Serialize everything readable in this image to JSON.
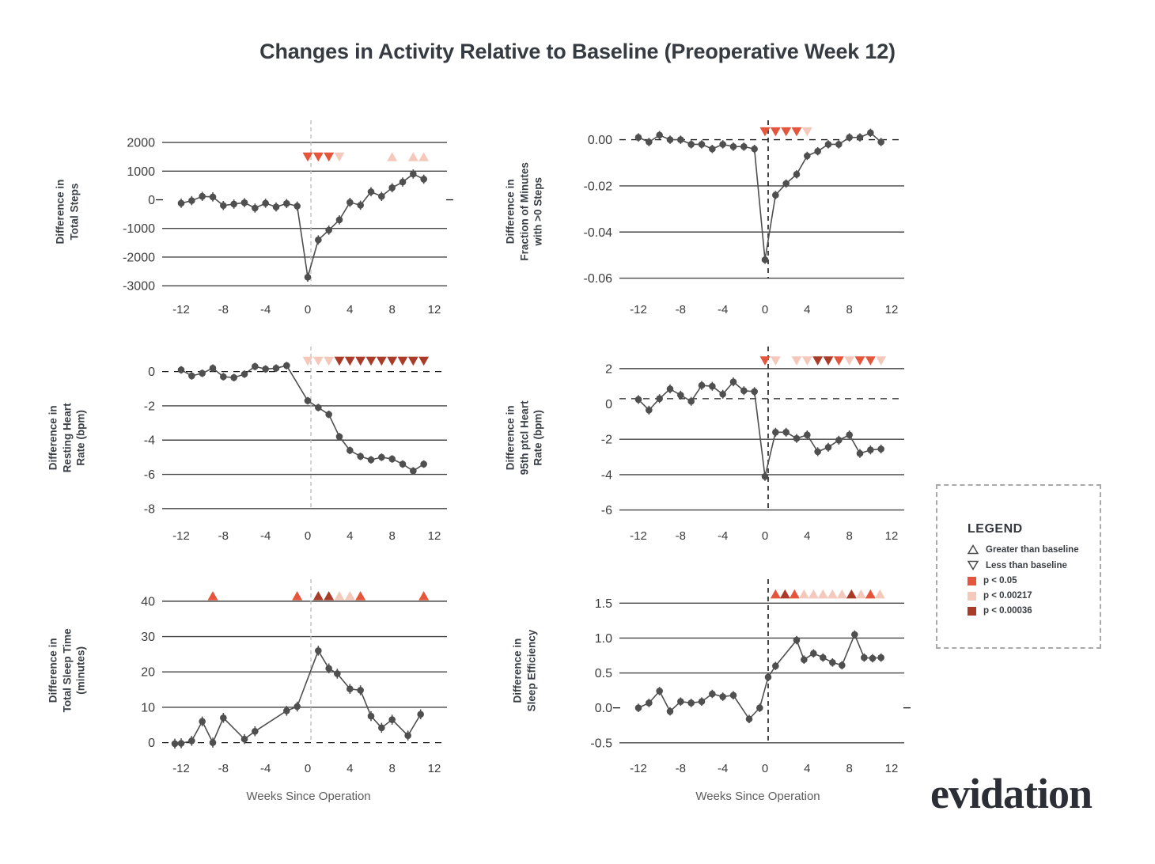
{
  "title": "Changes in Activity Relative to Baseline (Preoperative Week 12)",
  "x_axis_label": "Weeks Since Operation",
  "brand": {
    "logo_text": "evidation"
  },
  "legend": {
    "title": "LEGEND",
    "items": [
      {
        "glyph": "triangle-up-outline",
        "label": "Greater than baseline"
      },
      {
        "glyph": "triangle-down-outline",
        "label": "Less than baseline"
      },
      {
        "glyph": "square",
        "color": "#E4553B",
        "label": "p < 0.05"
      },
      {
        "glyph": "square",
        "color": "#F5C8BC",
        "label": "p < 0.00217"
      },
      {
        "glyph": "square",
        "color": "#A93B28",
        "label": "p < 0.00036"
      }
    ]
  },
  "colors": {
    "p05": "#E4553B",
    "p00217": "#F5C8BC",
    "p00036": "#A93B28",
    "series": "#4f4f4f",
    "grid": "#444444",
    "baseline": "#1a1a1a",
    "vline_left": "#bcbcbc",
    "vline_right": "#1a1a1a"
  },
  "chart_data": [
    {
      "type": "line",
      "name": "total-steps",
      "ylabel_lines": [
        "Difference in",
        "Total Steps"
      ],
      "xlim": [
        -13.8,
        13.2
      ],
      "x_ticks": [
        -12,
        -8,
        -4,
        0,
        4,
        8,
        12
      ],
      "ylim": [
        -3300,
        2500
      ],
      "y_ticks": [
        {
          "v": 2000,
          "label": "2000"
        },
        {
          "v": 1000,
          "label": "1000"
        },
        {
          "v": 0,
          "label": "0",
          "grid": false
        },
        {
          "v": -1000,
          "label": "-1000"
        },
        {
          "v": -2000,
          "label": "-2000"
        },
        {
          "v": -3000,
          "label": "-3000"
        }
      ],
      "baseline": {
        "value": 0,
        "style": "edge"
      },
      "vline": {
        "x": 0.3,
        "side": "left"
      },
      "err": 160,
      "x": [
        -12,
        -11,
        -10,
        -9,
        -8,
        -7,
        -6,
        -5,
        -4,
        -3,
        -2,
        -1,
        0,
        1,
        2,
        3,
        4,
        5,
        6,
        7,
        8,
        9,
        10,
        11
      ],
      "y": [
        -120,
        -30,
        120,
        100,
        -200,
        -150,
        -100,
        -290,
        -120,
        -250,
        -130,
        -220,
        -2700,
        -1400,
        -1060,
        -700,
        -90,
        -190,
        280,
        120,
        420,
        620,
        900,
        720
      ],
      "sig_y": 1500,
      "sig": [
        {
          "x": 0,
          "dir": "down",
          "p": "p05"
        },
        {
          "x": 1,
          "dir": "down",
          "p": "p05"
        },
        {
          "x": 2,
          "dir": "down",
          "p": "p05"
        },
        {
          "x": 3,
          "dir": "down",
          "p": "p00217"
        },
        {
          "x": 8,
          "dir": "up",
          "p": "p00217"
        },
        {
          "x": 10,
          "dir": "up",
          "p": "p00217"
        },
        {
          "x": 11,
          "dir": "up",
          "p": "p00217"
        }
      ]
    },
    {
      "type": "line",
      "name": "fraction-minutes-steps",
      "ylabel_lines": [
        "Difference in",
        "Fraction of Minutes",
        "with >0 Steps"
      ],
      "xlim": [
        -13.8,
        13.2
      ],
      "x_ticks": [
        -12,
        -8,
        -4,
        0,
        4,
        8,
        12
      ],
      "ylim": [
        -0.067,
        0.005
      ],
      "y_ticks": [
        {
          "v": 0,
          "label": "0.00",
          "grid": false
        },
        {
          "v": -0.02,
          "label": "-0.02"
        },
        {
          "v": -0.04,
          "label": "-0.04"
        },
        {
          "v": -0.06,
          "label": "-0.06"
        }
      ],
      "baseline": {
        "value": 0,
        "style": "line"
      },
      "vline": {
        "x": 0.3,
        "side": "right"
      },
      "err": 0.0018,
      "x": [
        -12,
        -11,
        -10,
        -9,
        -8,
        -7,
        -6,
        -5,
        -4,
        -3,
        -2,
        -1,
        0,
        1,
        2,
        3,
        4,
        5,
        6,
        7,
        8,
        9,
        10,
        11
      ],
      "y": [
        0.001,
        -0.001,
        0.002,
        0.0,
        0.0,
        -0.002,
        -0.002,
        -0.004,
        -0.002,
        -0.003,
        -0.003,
        -0.004,
        -0.052,
        -0.024,
        -0.019,
        -0.015,
        -0.007,
        -0.005,
        -0.002,
        -0.002,
        0.001,
        0.001,
        0.003,
        -0.001
      ],
      "sig_y": 0.0035,
      "sig": [
        {
          "x": 0,
          "dir": "down",
          "p": "p05"
        },
        {
          "x": 1,
          "dir": "down",
          "p": "p05"
        },
        {
          "x": 2,
          "dir": "down",
          "p": "p05"
        },
        {
          "x": 3,
          "dir": "down",
          "p": "p05"
        },
        {
          "x": 4,
          "dir": "down",
          "p": "p00217"
        }
      ]
    },
    {
      "type": "line",
      "name": "resting-heart-rate",
      "ylabel_lines": [
        "Difference in",
        "Resting Heart",
        "Rate (bpm)"
      ],
      "xlim": [
        -13.8,
        13.2
      ],
      "x_ticks": [
        -12,
        -8,
        -4,
        0,
        4,
        8,
        12
      ],
      "ylim": [
        -8.7,
        1.0
      ],
      "y_ticks": [
        {
          "v": 0,
          "label": "0",
          "grid": false
        },
        {
          "v": -2,
          "label": "-2"
        },
        {
          "v": -4,
          "label": "-4"
        },
        {
          "v": -6,
          "label": "-6"
        },
        {
          "v": -8,
          "label": "-8"
        }
      ],
      "baseline": {
        "value": 0,
        "style": "line"
      },
      "vline": {
        "x": 0.3,
        "side": "left"
      },
      "err": 0.22,
      "x": [
        -12,
        -11,
        -10,
        -9,
        -8,
        -7,
        -6,
        -5,
        -4,
        -3,
        -2,
        0,
        1,
        2,
        3,
        4,
        5,
        6,
        7,
        8,
        9,
        10,
        11
      ],
      "y": [
        0.1,
        -0.25,
        -0.1,
        0.2,
        -0.3,
        -0.35,
        -0.15,
        0.3,
        0.15,
        0.2,
        0.35,
        -1.7,
        -2.1,
        -2.5,
        -3.8,
        -4.6,
        -4.95,
        -5.15,
        -5.0,
        -5.1,
        -5.4,
        -5.8,
        -5.4
      ],
      "sig_y": 0.62,
      "sig": [
        {
          "x": 0,
          "dir": "down",
          "p": "p00217"
        },
        {
          "x": 1,
          "dir": "down",
          "p": "p00217"
        },
        {
          "x": 2,
          "dir": "down",
          "p": "p00217"
        },
        {
          "x": 3,
          "dir": "down",
          "p": "p00036"
        },
        {
          "x": 4,
          "dir": "down",
          "p": "p00036"
        },
        {
          "x": 5,
          "dir": "down",
          "p": "p00036"
        },
        {
          "x": 6,
          "dir": "down",
          "p": "p00036"
        },
        {
          "x": 7,
          "dir": "down",
          "p": "p00036"
        },
        {
          "x": 8,
          "dir": "down",
          "p": "p00036"
        },
        {
          "x": 9,
          "dir": "down",
          "p": "p00036"
        },
        {
          "x": 10,
          "dir": "down",
          "p": "p00036"
        },
        {
          "x": 11,
          "dir": "down",
          "p": "p00036"
        }
      ]
    },
    {
      "type": "line",
      "name": "95th-ptcl-heart-rate",
      "ylabel_lines": [
        "Difference in",
        "95th ptcl Heart",
        "Rate (bpm)"
      ],
      "xlim": [
        -13.8,
        13.2
      ],
      "x_ticks": [
        -12,
        -8,
        -4,
        0,
        4,
        8,
        12
      ],
      "ylim": [
        -6.6,
        2.8
      ],
      "y_ticks": [
        {
          "v": 2,
          "label": "2"
        },
        {
          "v": 0,
          "label": "0",
          "grid": false
        },
        {
          "v": -2,
          "label": "-2"
        },
        {
          "v": -4,
          "label": "-4"
        },
        {
          "v": -6,
          "label": "-6"
        }
      ],
      "baseline": {
        "value": 0.3,
        "style": "line"
      },
      "vline": {
        "x": 0.3,
        "side": "right"
      },
      "err": 0.25,
      "x": [
        -12,
        -11,
        -10,
        -9,
        -8,
        -7,
        -6,
        -5,
        -4,
        -3,
        -2,
        -1,
        0,
        1,
        2,
        3,
        4,
        5,
        6,
        7,
        8,
        9,
        10,
        11
      ],
      "y": [
        0.25,
        -0.35,
        0.3,
        0.85,
        0.5,
        0.15,
        1.05,
        1.0,
        0.55,
        1.25,
        0.75,
        0.7,
        -4.1,
        -1.6,
        -1.6,
        -1.95,
        -1.75,
        -2.7,
        -2.45,
        -2.05,
        -1.75,
        -2.8,
        -2.6,
        -2.55
      ],
      "sig_y": 2.45,
      "sig": [
        {
          "x": 0,
          "dir": "down",
          "p": "p05"
        },
        {
          "x": 1,
          "dir": "down",
          "p": "p00217"
        },
        {
          "x": 3,
          "dir": "down",
          "p": "p00217"
        },
        {
          "x": 4,
          "dir": "down",
          "p": "p00217"
        },
        {
          "x": 5,
          "dir": "down",
          "p": "p00036"
        },
        {
          "x": 6,
          "dir": "down",
          "p": "p00036"
        },
        {
          "x": 7,
          "dir": "down",
          "p": "p05"
        },
        {
          "x": 8,
          "dir": "down",
          "p": "p00217"
        },
        {
          "x": 9,
          "dir": "down",
          "p": "p05"
        },
        {
          "x": 10,
          "dir": "down",
          "p": "p05"
        },
        {
          "x": 11,
          "dir": "down",
          "p": "p00217"
        }
      ]
    },
    {
      "type": "line",
      "name": "total-sleep-time",
      "ylabel_lines": [
        "Difference in",
        "Total Sleep Time",
        "(minutes)"
      ],
      "xlim": [
        -13.8,
        13.2
      ],
      "x_ticks": [
        -12,
        -8,
        -4,
        0,
        4,
        8,
        12
      ],
      "ylim": [
        -3,
        44
      ],
      "y_ticks": [
        {
          "v": 40,
          "label": "40"
        },
        {
          "v": 30,
          "label": "30"
        },
        {
          "v": 20,
          "label": "20"
        },
        {
          "v": 10,
          "label": "10"
        },
        {
          "v": 0,
          "label": "0",
          "grid": false
        }
      ],
      "baseline": {
        "value": 0,
        "style": "line"
      },
      "vline": {
        "x": 0.3,
        "side": "left"
      },
      "err": 1.4,
      "x": [
        -12.6,
        -12,
        -11,
        -10,
        -9,
        -8,
        -6,
        -5,
        -2,
        -1,
        1,
        2,
        2.8,
        4,
        5,
        6,
        7,
        8,
        9.5,
        10.7
      ],
      "y": [
        -0.3,
        -0.2,
        0.5,
        6,
        0,
        7,
        1,
        3.2,
        9,
        10.2,
        26,
        21,
        19.5,
        15.2,
        14.8,
        7.5,
        4.2,
        6.5,
        2,
        8
      ],
      "sig_y": 41.5,
      "sig": [
        {
          "x": -9,
          "dir": "up",
          "p": "p05"
        },
        {
          "x": -1,
          "dir": "up",
          "p": "p05"
        },
        {
          "x": 1,
          "dir": "up",
          "p": "p00036"
        },
        {
          "x": 2,
          "dir": "up",
          "p": "p00036"
        },
        {
          "x": 3,
          "dir": "up",
          "p": "p00217"
        },
        {
          "x": 4,
          "dir": "up",
          "p": "p00217"
        },
        {
          "x": 5,
          "dir": "up",
          "p": "p05"
        },
        {
          "x": 11,
          "dir": "up",
          "p": "p05"
        }
      ]
    },
    {
      "type": "line",
      "name": "sleep-efficiency",
      "ylabel_lines": [
        "Difference in",
        "Sleep Efficiency"
      ],
      "xlim": [
        -13.8,
        13.2
      ],
      "x_ticks": [
        -12,
        -8,
        -4,
        0,
        4,
        8,
        12
      ],
      "ylim": [
        -0.65,
        1.73
      ],
      "y_ticks": [
        {
          "v": 1.5,
          "label": "1.5"
        },
        {
          "v": 1.0,
          "label": "1.0"
        },
        {
          "v": 0.5,
          "label": "0.5"
        },
        {
          "v": 0.0,
          "label": "0.0",
          "grid": false
        },
        {
          "v": -0.5,
          "label": "-0.5"
        }
      ],
      "baseline": {
        "value": 0,
        "style": "edge"
      },
      "vline": {
        "x": 0.3,
        "side": "right"
      },
      "err": 0.06,
      "x": [
        -12,
        -11,
        -10,
        -9,
        -8,
        -7,
        -6,
        -5,
        -4,
        -3,
        -1.5,
        -0.5,
        0.3,
        1,
        3,
        3.7,
        4.6,
        5.5,
        6.4,
        7.3,
        8.5,
        9.4,
        10.2,
        11
      ],
      "y": [
        0.0,
        0.07,
        0.24,
        -0.05,
        0.09,
        0.07,
        0.09,
        0.2,
        0.16,
        0.18,
        -0.16,
        0.0,
        0.44,
        0.6,
        0.97,
        0.69,
        0.78,
        0.72,
        0.65,
        0.61,
        1.05,
        0.72,
        0.71,
        0.72
      ],
      "sig_y": 1.63,
      "sig": [
        {
          "x": 1,
          "dir": "up",
          "p": "p05"
        },
        {
          "x": 1.9,
          "dir": "up",
          "p": "p00036"
        },
        {
          "x": 2.8,
          "dir": "up",
          "p": "p05"
        },
        {
          "x": 3.7,
          "dir": "up",
          "p": "p00217"
        },
        {
          "x": 4.6,
          "dir": "up",
          "p": "p00217"
        },
        {
          "x": 5.5,
          "dir": "up",
          "p": "p00217"
        },
        {
          "x": 6.4,
          "dir": "up",
          "p": "p00217"
        },
        {
          "x": 7.3,
          "dir": "up",
          "p": "p00217"
        },
        {
          "x": 8.2,
          "dir": "up",
          "p": "p00036"
        },
        {
          "x": 9.1,
          "dir": "up",
          "p": "p00217"
        },
        {
          "x": 10,
          "dir": "up",
          "p": "p05"
        },
        {
          "x": 10.9,
          "dir": "up",
          "p": "p00217"
        }
      ]
    }
  ]
}
